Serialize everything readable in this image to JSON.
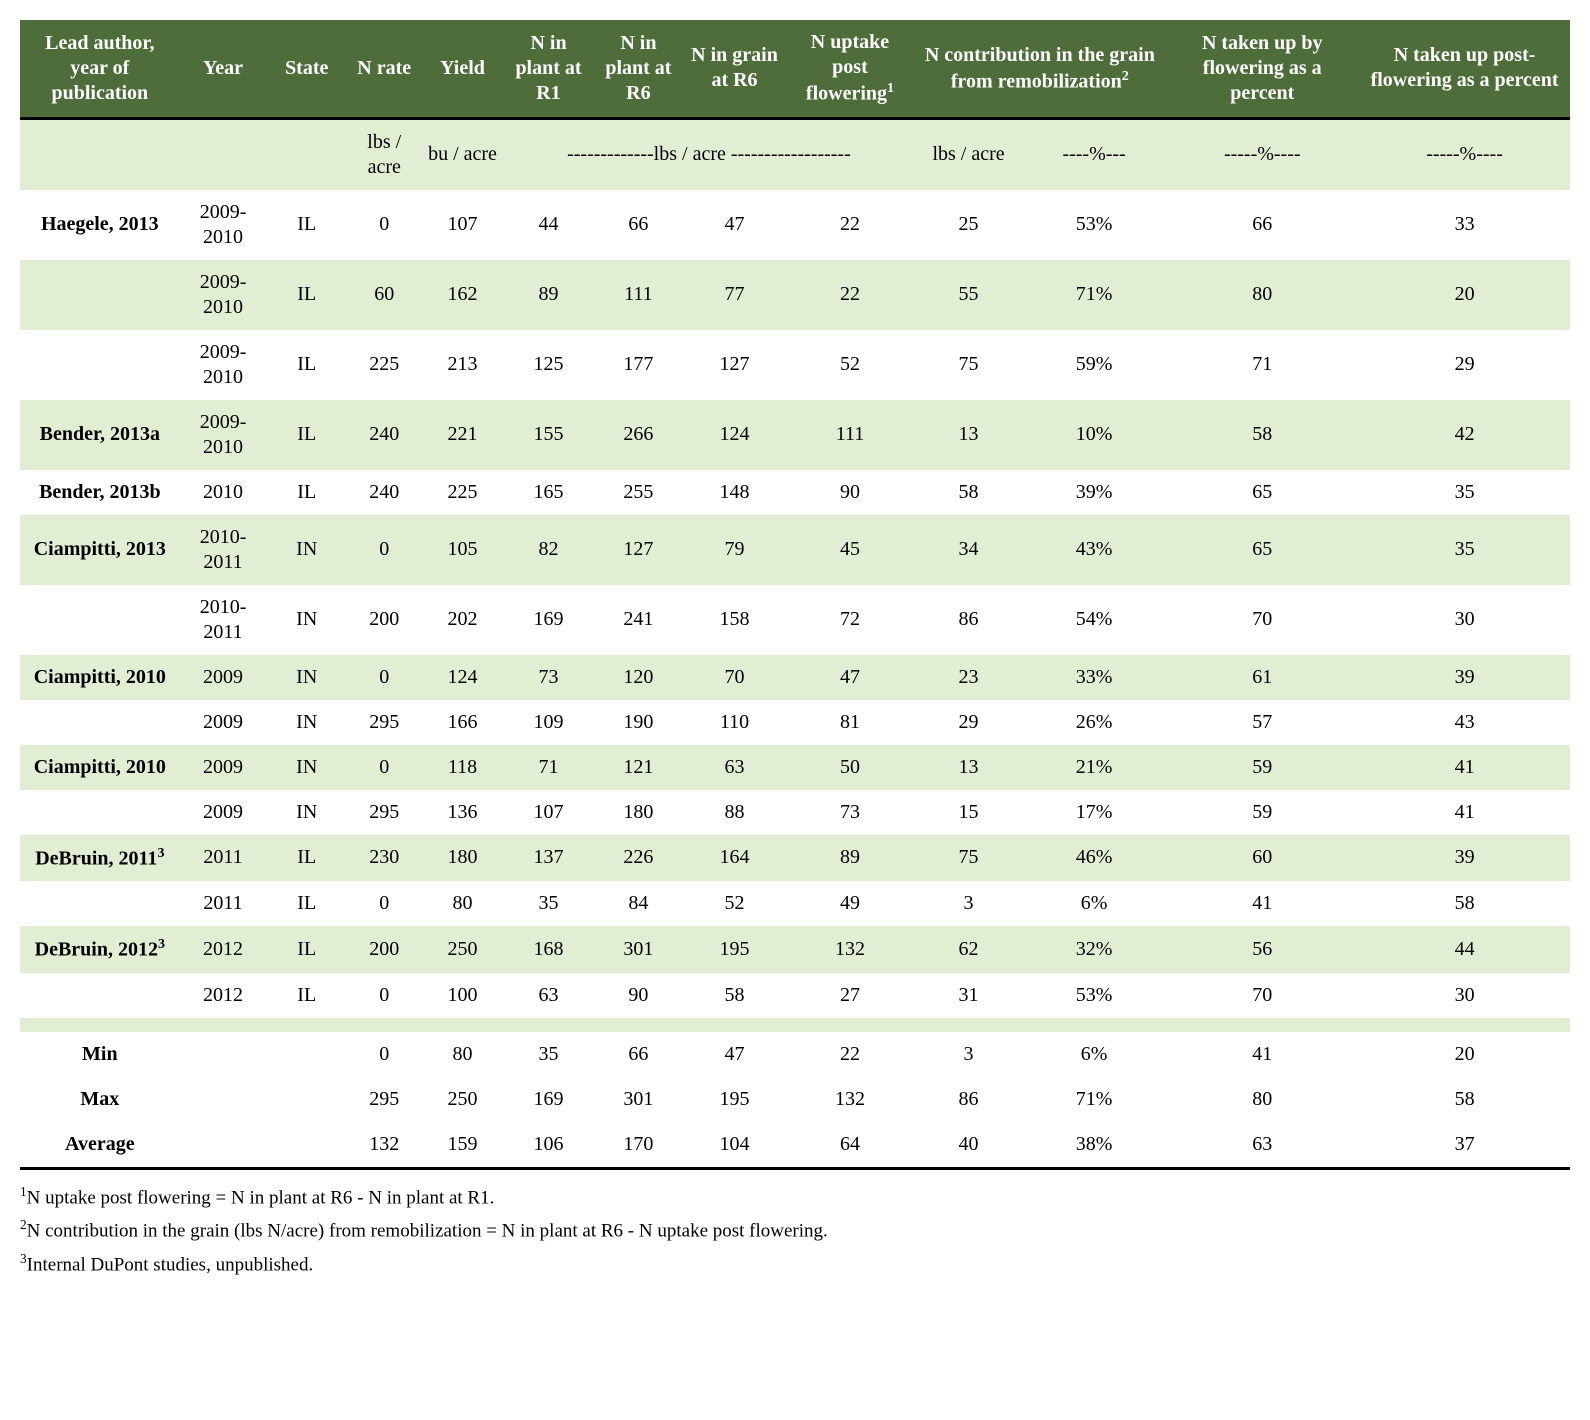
{
  "colors": {
    "header_bg": "#4f6d3a",
    "header_fg": "#ffffff",
    "row_alt_bg": "#e2eed4",
    "row_bg": "#ffffff",
    "border": "#000000"
  },
  "columns": [
    {
      "key": "author",
      "label_html": "Lead author, year of publication"
    },
    {
      "key": "year",
      "label_html": "Year"
    },
    {
      "key": "state",
      "label_html": "State"
    },
    {
      "key": "nrate",
      "label_html": "N rate"
    },
    {
      "key": "yield",
      "label_html": "Yield"
    },
    {
      "key": "n_r1",
      "label_html": "N in plant at R1"
    },
    {
      "key": "n_r6",
      "label_html": "N in plant at R6"
    },
    {
      "key": "n_grain_r6",
      "label_html": "N in grain at R6"
    },
    {
      "key": "n_post",
      "label_html": "N uptake post flowering",
      "sup": "1"
    },
    {
      "key": "remob_lbs",
      "label_html": "N contribution in the grain from remobilization",
      "sup": "2",
      "span": 2
    },
    {
      "key": "pct_flower",
      "label_html": "N taken up by flowering as a percent"
    },
    {
      "key": "pct_post",
      "label_html": "N taken up post-flowering as a percent"
    }
  ],
  "units": {
    "nrate": "lbs / acre",
    "yield": "bu / acre",
    "lbs_span": "-------------lbs / acre ------------------",
    "remob_lbs": "lbs / acre",
    "remob_pct": "----%---",
    "pct_flower": "-----%----",
    "pct_post": "-----%----"
  },
  "rows": [
    {
      "author": "Haegele, 2013",
      "year": "2009-2010",
      "state": "IL",
      "nrate": "0",
      "yield": "107",
      "n_r1": "44",
      "n_r6": "66",
      "n_grain_r6": "47",
      "n_post": "22",
      "remob_lbs": "25",
      "remob_pct": "53%",
      "pct_flower": "66",
      "pct_post": "33"
    },
    {
      "author": "",
      "year": "2009-2010",
      "state": "IL",
      "nrate": "60",
      "yield": "162",
      "n_r1": "89",
      "n_r6": "111",
      "n_grain_r6": "77",
      "n_post": "22",
      "remob_lbs": "55",
      "remob_pct": "71%",
      "pct_flower": "80",
      "pct_post": "20"
    },
    {
      "author": "",
      "year": "2009-2010",
      "state": "IL",
      "nrate": "225",
      "yield": "213",
      "n_r1": "125",
      "n_r6": "177",
      "n_grain_r6": "127",
      "n_post": "52",
      "remob_lbs": "75",
      "remob_pct": "59%",
      "pct_flower": "71",
      "pct_post": "29"
    },
    {
      "author": "Bender, 2013a",
      "year": "2009-2010",
      "state": "IL",
      "nrate": "240",
      "yield": "221",
      "n_r1": "155",
      "n_r6": "266",
      "n_grain_r6": "124",
      "n_post": "111",
      "remob_lbs": "13",
      "remob_pct": "10%",
      "pct_flower": "58",
      "pct_post": "42"
    },
    {
      "author": "Bender, 2013b",
      "year": "2010",
      "state": "IL",
      "nrate": "240",
      "yield": "225",
      "n_r1": "165",
      "n_r6": "255",
      "n_grain_r6": "148",
      "n_post": "90",
      "remob_lbs": "58",
      "remob_pct": "39%",
      "pct_flower": "65",
      "pct_post": "35"
    },
    {
      "author": "Ciampitti, 2013",
      "year": "2010-2011",
      "state": "IN",
      "nrate": "0",
      "yield": "105",
      "n_r1": "82",
      "n_r6": "127",
      "n_grain_r6": "79",
      "n_post": "45",
      "remob_lbs": "34",
      "remob_pct": "43%",
      "pct_flower": "65",
      "pct_post": "35"
    },
    {
      "author": "",
      "year": "2010-2011",
      "state": "IN",
      "nrate": "200",
      "yield": "202",
      "n_r1": "169",
      "n_r6": "241",
      "n_grain_r6": "158",
      "n_post": "72",
      "remob_lbs": "86",
      "remob_pct": "54%",
      "pct_flower": "70",
      "pct_post": "30"
    },
    {
      "author": "Ciampitti, 2010",
      "year": "2009",
      "state": "IN",
      "nrate": "0",
      "yield": "124",
      "n_r1": "73",
      "n_r6": "120",
      "n_grain_r6": "70",
      "n_post": "47",
      "remob_lbs": "23",
      "remob_pct": "33%",
      "pct_flower": "61",
      "pct_post": "39"
    },
    {
      "author": "",
      "year": "2009",
      "state": "IN",
      "nrate": "295",
      "yield": "166",
      "n_r1": "109",
      "n_r6": "190",
      "n_grain_r6": "110",
      "n_post": "81",
      "remob_lbs": "29",
      "remob_pct": "26%",
      "pct_flower": "57",
      "pct_post": "43"
    },
    {
      "author": "Ciampitti, 2010",
      "year": "2009",
      "state": "IN",
      "nrate": "0",
      "yield": "118",
      "n_r1": "71",
      "n_r6": "121",
      "n_grain_r6": "63",
      "n_post": "50",
      "remob_lbs": "13",
      "remob_pct": "21%",
      "pct_flower": "59",
      "pct_post": "41"
    },
    {
      "author": "",
      "year": "2009",
      "state": "IN",
      "nrate": "295",
      "yield": "136",
      "n_r1": "107",
      "n_r6": "180",
      "n_grain_r6": "88",
      "n_post": "73",
      "remob_lbs": "15",
      "remob_pct": "17%",
      "pct_flower": "59",
      "pct_post": "41"
    },
    {
      "author": "DeBruin, 2011",
      "author_sup": "3",
      "year": "2011",
      "state": "IL",
      "nrate": "230",
      "yield": "180",
      "n_r1": "137",
      "n_r6": "226",
      "n_grain_r6": "164",
      "n_post": "89",
      "remob_lbs": "75",
      "remob_pct": "46%",
      "pct_flower": "60",
      "pct_post": "39"
    },
    {
      "author": "",
      "year": "2011",
      "state": "IL",
      "nrate": "0",
      "yield": "80",
      "n_r1": "35",
      "n_r6": "84",
      "n_grain_r6": "52",
      "n_post": "49",
      "remob_lbs": "3",
      "remob_pct": "6%",
      "pct_flower": "41",
      "pct_post": "58"
    },
    {
      "author": "DeBruin, 2012",
      "author_sup": "3",
      "year": "2012",
      "state": "IL",
      "nrate": "200",
      "yield": "250",
      "n_r1": "168",
      "n_r6": "301",
      "n_grain_r6": "195",
      "n_post": "132",
      "remob_lbs": "62",
      "remob_pct": "32%",
      "pct_flower": "56",
      "pct_post": "44"
    },
    {
      "author": "",
      "year": "2012",
      "state": "IL",
      "nrate": "0",
      "yield": "100",
      "n_r1": "63",
      "n_r6": "90",
      "n_grain_r6": "58",
      "n_post": "27",
      "remob_lbs": "31",
      "remob_pct": "53%",
      "pct_flower": "70",
      "pct_post": "30"
    }
  ],
  "summary": [
    {
      "label": "Min",
      "nrate": "0",
      "yield": "80",
      "n_r1": "35",
      "n_r6": "66",
      "n_grain_r6": "47",
      "n_post": "22",
      "remob_lbs": "3",
      "remob_pct": "6%",
      "pct_flower": "41",
      "pct_post": "20"
    },
    {
      "label": "Max",
      "nrate": "295",
      "yield": "250",
      "n_r1": "169",
      "n_r6": "301",
      "n_grain_r6": "195",
      "n_post": "132",
      "remob_lbs": "86",
      "remob_pct": "71%",
      "pct_flower": "80",
      "pct_post": "58"
    },
    {
      "label": "Average",
      "nrate": "132",
      "yield": "159",
      "n_r1": "106",
      "n_r6": "170",
      "n_grain_r6": "104",
      "n_post": "64",
      "remob_lbs": "40",
      "remob_pct": "38%",
      "pct_flower": "63",
      "pct_post": "37"
    }
  ],
  "footnotes": [
    {
      "sup": "1",
      "text": "N uptake post flowering = N in plant at R6 - N in plant at R1."
    },
    {
      "sup": "2",
      "text": "N contribution in the grain (lbs N/acre) from remobilization = N in plant at R6 - N uptake post flowering."
    },
    {
      "sup": "3",
      "text": "Internal DuPont studies, unpublished."
    }
  ]
}
